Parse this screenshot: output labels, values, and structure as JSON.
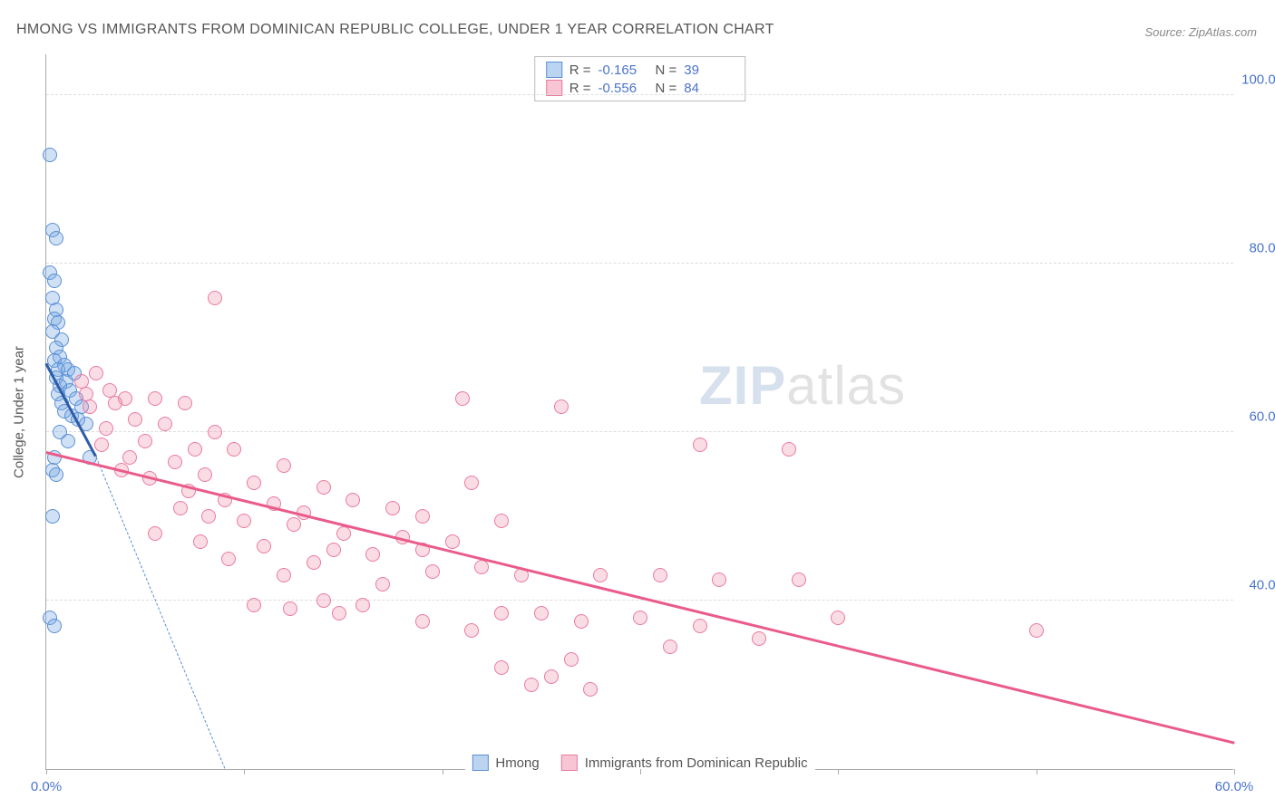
{
  "title": "HMONG VS IMMIGRANTS FROM DOMINICAN REPUBLIC COLLEGE, UNDER 1 YEAR CORRELATION CHART",
  "source": "Source: ZipAtlas.com",
  "y_axis_label": "College, Under 1 year",
  "watermark_zip": "ZIP",
  "watermark_atlas": "atlas",
  "chart": {
    "type": "scatter",
    "background_color": "#ffffff",
    "grid_color": "#dddddd",
    "axis_color": "#aaaaaa",
    "tick_label_color": "#4a74c9",
    "xlim": [
      0,
      60
    ],
    "ylim": [
      20,
      105
    ],
    "x_ticks": [
      0,
      10,
      20,
      30,
      40,
      50,
      60
    ],
    "x_tick_labels": [
      "0.0%",
      "",
      "",
      "",
      "",
      "",
      "60.0%"
    ],
    "y_ticks": [
      40,
      60,
      80,
      100
    ],
    "y_tick_labels": [
      "40.0%",
      "60.0%",
      "80.0%",
      "100.0%"
    ],
    "marker_size": 16,
    "series": [
      {
        "name": "Hmong",
        "color_fill": "rgba(120,170,225,0.35)",
        "color_stroke": "#5b8fd6",
        "trend_color": "#2e5da8",
        "trend": {
          "x1": 0,
          "y1": 68,
          "x2": 2.5,
          "y2": 57
        },
        "trend_extrapolate": {
          "x1": 2.5,
          "y1": 57,
          "x2": 9,
          "y2": 20
        },
        "points": [
          [
            0.2,
            93
          ],
          [
            0.3,
            84
          ],
          [
            0.5,
            83
          ],
          [
            0.2,
            79
          ],
          [
            0.4,
            78
          ],
          [
            0.3,
            76
          ],
          [
            0.5,
            74.5
          ],
          [
            0.4,
            73.5
          ],
          [
            0.6,
            73
          ],
          [
            0.3,
            72
          ],
          [
            0.8,
            71
          ],
          [
            0.5,
            70
          ],
          [
            0.7,
            69
          ],
          [
            0.4,
            68.5
          ],
          [
            0.9,
            68
          ],
          [
            0.6,
            67.5
          ],
          [
            1.1,
            67.5
          ],
          [
            1.4,
            67
          ],
          [
            0.5,
            66.5
          ],
          [
            1.0,
            66
          ],
          [
            0.7,
            65.5
          ],
          [
            1.2,
            65
          ],
          [
            0.6,
            64.5
          ],
          [
            1.5,
            64
          ],
          [
            0.8,
            63.5
          ],
          [
            1.8,
            63
          ],
          [
            0.9,
            62.5
          ],
          [
            1.3,
            62
          ],
          [
            1.6,
            61.5
          ],
          [
            2.0,
            61
          ],
          [
            0.7,
            60
          ],
          [
            1.1,
            59
          ],
          [
            0.4,
            57
          ],
          [
            2.2,
            57
          ],
          [
            0.3,
            55.5
          ],
          [
            0.5,
            55
          ],
          [
            0.3,
            50
          ],
          [
            0.2,
            38
          ],
          [
            0.4,
            37
          ]
        ]
      },
      {
        "name": "Immigrants from Dominican Republic",
        "color_fill": "rgba(240,140,170,0.3)",
        "color_stroke": "#ea7aa0",
        "trend_color": "#ea5b89",
        "trend": {
          "x1": 0,
          "y1": 57.5,
          "x2": 60,
          "y2": 23
        },
        "points": [
          [
            8.5,
            76
          ],
          [
            2.5,
            67
          ],
          [
            1.8,
            66
          ],
          [
            3.2,
            65
          ],
          [
            2.0,
            64.5
          ],
          [
            4.0,
            64
          ],
          [
            5.5,
            64
          ],
          [
            3.5,
            63.5
          ],
          [
            7.0,
            63.5
          ],
          [
            2.2,
            63
          ],
          [
            4.5,
            61.5
          ],
          [
            21,
            64
          ],
          [
            26,
            63
          ],
          [
            6.0,
            61
          ],
          [
            3.0,
            60.5
          ],
          [
            8.5,
            60
          ],
          [
            5.0,
            59
          ],
          [
            2.8,
            58.5
          ],
          [
            7.5,
            58
          ],
          [
            9.5,
            58
          ],
          [
            4.2,
            57
          ],
          [
            6.5,
            56.5
          ],
          [
            12,
            56
          ],
          [
            3.8,
            55.5
          ],
          [
            8.0,
            55
          ],
          [
            5.2,
            54.5
          ],
          [
            10.5,
            54
          ],
          [
            14,
            53.5
          ],
          [
            7.2,
            53
          ],
          [
            21.5,
            54
          ],
          [
            9.0,
            52
          ],
          [
            15.5,
            52
          ],
          [
            11.5,
            51.5
          ],
          [
            6.8,
            51
          ],
          [
            13,
            50.5
          ],
          [
            17.5,
            51
          ],
          [
            8.2,
            50
          ],
          [
            19,
            50
          ],
          [
            10,
            49.5
          ],
          [
            23,
            49.5
          ],
          [
            12.5,
            49
          ],
          [
            5.5,
            48
          ],
          [
            15,
            48
          ],
          [
            7.8,
            47
          ],
          [
            18,
            47.5
          ],
          [
            11,
            46.5
          ],
          [
            20.5,
            47
          ],
          [
            14.5,
            46
          ],
          [
            9.2,
            45
          ],
          [
            16.5,
            45.5
          ],
          [
            13.5,
            44.5
          ],
          [
            22,
            44
          ],
          [
            19.5,
            43.5
          ],
          [
            33,
            58.5
          ],
          [
            12,
            43
          ],
          [
            24,
            43
          ],
          [
            28,
            43
          ],
          [
            31,
            43
          ],
          [
            37.5,
            58
          ],
          [
            17,
            42
          ],
          [
            14,
            40
          ],
          [
            34,
            42.5
          ],
          [
            10.5,
            39.5
          ],
          [
            16,
            39.5
          ],
          [
            12.3,
            39
          ],
          [
            23,
            38.5
          ],
          [
            38,
            42.5
          ],
          [
            19,
            37.5
          ],
          [
            14.8,
            38.5
          ],
          [
            27,
            37.5
          ],
          [
            25,
            38.5
          ],
          [
            30,
            38
          ],
          [
            21.5,
            36.5
          ],
          [
            36,
            35.5
          ],
          [
            40,
            38
          ],
          [
            31.5,
            34.5
          ],
          [
            33,
            37
          ],
          [
            50,
            36.5
          ],
          [
            26.5,
            33
          ],
          [
            23,
            32
          ],
          [
            25.5,
            31
          ],
          [
            24.5,
            30
          ],
          [
            27.5,
            29.5
          ],
          [
            19,
            46
          ]
        ]
      }
    ]
  },
  "stats": [
    {
      "swatch": "blue",
      "r_label": "R =",
      "r": "-0.165",
      "n_label": "N =",
      "n": "39"
    },
    {
      "swatch": "pink",
      "r_label": "R =",
      "r": "-0.556",
      "n_label": "N =",
      "n": "84"
    }
  ],
  "bottom_legend": [
    {
      "swatch": "blue",
      "label": "Hmong"
    },
    {
      "swatch": "pink",
      "label": "Immigrants from Dominican Republic"
    }
  ]
}
